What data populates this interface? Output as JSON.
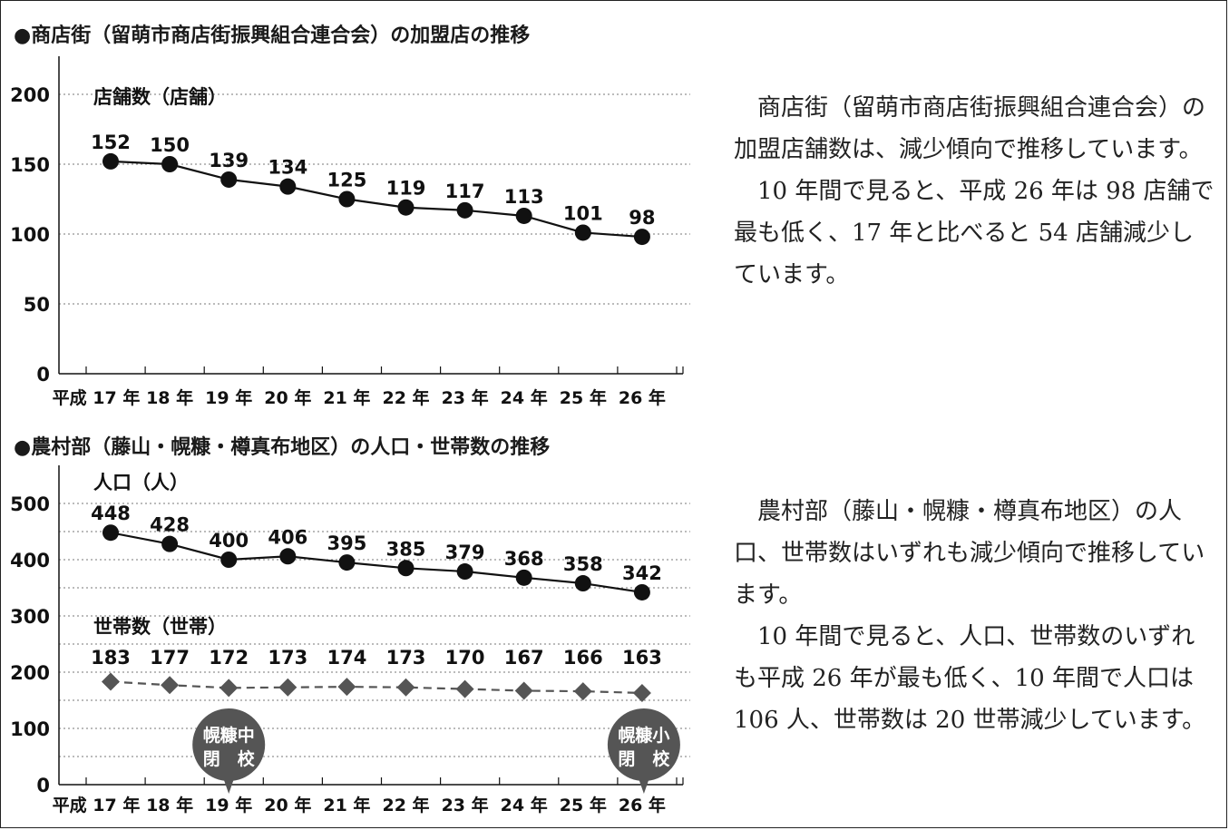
{
  "chart_data": [
    {
      "type": "line",
      "title": "●商店街（留萌市商店街振興組合連合会）の加盟店の推移",
      "categories": [
        "平成 17 年",
        "18 年",
        "19 年",
        "20 年",
        "21 年",
        "22 年",
        "23 年",
        "24 年",
        "25 年",
        "26 年"
      ],
      "ylim": [
        0,
        200
      ],
      "yticks": [
        0,
        50,
        100,
        150,
        200
      ],
      "grid": true,
      "series": [
        {
          "name": "店舗数（店舗）",
          "values": [
            152,
            150,
            139,
            134,
            125,
            119,
            117,
            113,
            101,
            98
          ],
          "marker": "circle",
          "line": "solid",
          "color": "#111111"
        }
      ]
    },
    {
      "type": "line",
      "title": "●農村部（藤山・幌糠・樽真布地区）の人口・世帯数の推移",
      "categories": [
        "平成 17 年",
        "18 年",
        "19 年",
        "20 年",
        "21 年",
        "22 年",
        "23 年",
        "24 年",
        "25 年",
        "26 年"
      ],
      "ylim": [
        0,
        500
      ],
      "yticks": [
        0,
        100,
        200,
        300,
        400,
        500
      ],
      "grid": true,
      "series": [
        {
          "name": "人口（人）",
          "values": [
            448,
            428,
            400,
            406,
            395,
            385,
            379,
            368,
            358,
            342
          ],
          "marker": "circle",
          "line": "solid",
          "color": "#111111"
        },
        {
          "name": "世帯数（世帯）",
          "values": [
            183,
            177,
            172,
            173,
            174,
            173,
            170,
            167,
            166,
            163
          ],
          "marker": "diamond",
          "line": "dashed",
          "color": "#555555"
        }
      ],
      "annotations": [
        {
          "label_top": "幌糠中",
          "label_bottom": "閉　校",
          "category_index": 2,
          "color": "#555555"
        },
        {
          "label_top": "幌糠小",
          "label_bottom": "閉　校",
          "category_index": 9,
          "color": "#555555"
        }
      ]
    }
  ],
  "text": {
    "p1": "　商店街（留萌市商店街振興組合連合会）の加盟店舗数は、減少傾向で推移しています。",
    "p2": "　10 年間で見ると、平成 26 年は 98 店舗で最も低く、17 年と比べると 54 店舗減少しています。",
    "p3": "　農村部（藤山・幌糠・樽真布地区）の人口、世帯数はいずれも減少傾向で推移しています。",
    "p4": "　10 年間で見ると、人口、世帯数のいずれも平成 26 年が最も低く、10 年間で人口は 106 人、世帯数は 20 世帯減少しています。"
  }
}
